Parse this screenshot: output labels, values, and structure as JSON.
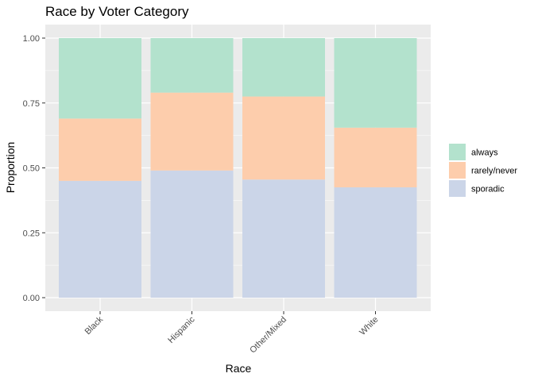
{
  "chart_data": {
    "type": "bar",
    "stacked": true,
    "title": "Race by Voter Category",
    "xlabel": "Race",
    "ylabel": "Proportion",
    "ylim": [
      0,
      1
    ],
    "yticks": [
      "0.00",
      "0.25",
      "0.50",
      "0.75",
      "1.00"
    ],
    "ytick_values": [
      0,
      0.25,
      0.5,
      0.75,
      1.0
    ],
    "categories": [
      "Black",
      "Hispanic",
      "Other/Mixed",
      "White"
    ],
    "series": [
      {
        "name": "sporadic",
        "color": "#CBD5E8",
        "values": [
          0.45,
          0.49,
          0.455,
          0.425
        ]
      },
      {
        "name": "rarely/never",
        "color": "#FDCDAC",
        "values": [
          0.24,
          0.3,
          0.32,
          0.23
        ]
      },
      {
        "name": "always",
        "color": "#B3E2CD",
        "values": [
          0.31,
          0.21,
          0.225,
          0.345
        ]
      }
    ],
    "legend_order": [
      "always",
      "rarely/never",
      "sporadic"
    ],
    "legend_position": "right",
    "grid": true,
    "panel_background": "#EBEBEB"
  }
}
